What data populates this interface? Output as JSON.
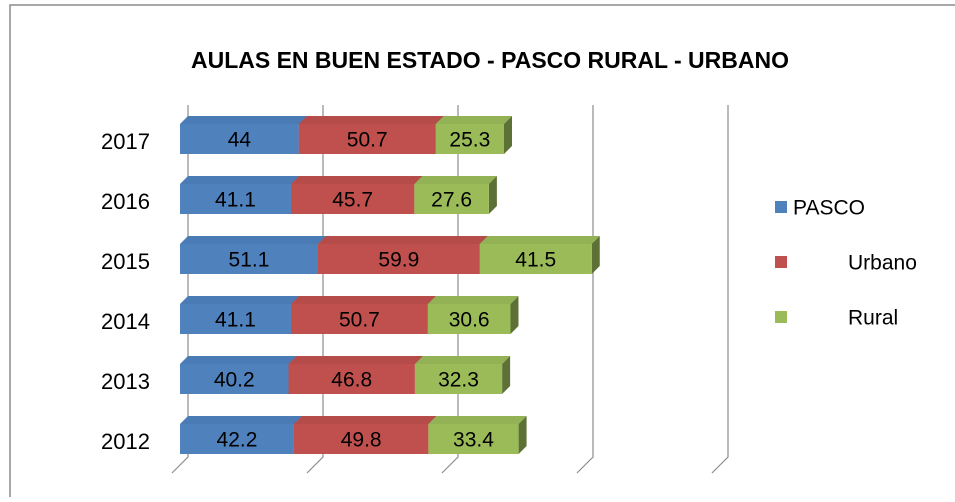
{
  "chart_data": {
    "type": "bar",
    "orientation": "horizontal",
    "stacked": true,
    "title": "AULAS EN BUEN ESTADO - PASCO RURAL - URBANO",
    "categories": [
      "2012",
      "2013",
      "2014",
      "2015",
      "2016",
      "2017"
    ],
    "series": [
      {
        "name": "PASCO",
        "color": "#4f81bd",
        "values": [
          42.2,
          40.2,
          41.1,
          51.1,
          41.1,
          44
        ]
      },
      {
        "name": "Urbano",
        "color": "#c0504d",
        "values": [
          49.8,
          46.8,
          50.7,
          59.9,
          45.7,
          50.7
        ]
      },
      {
        "name": "Rural",
        "color": "#9bbb59",
        "values": [
          33.4,
          32.3,
          30.6,
          41.5,
          27.6,
          25.3
        ]
      }
    ],
    "xlim": [
      0,
      200
    ],
    "xticks": [
      0,
      50,
      100,
      150,
      200
    ],
    "grid": true,
    "legend": "right"
  }
}
